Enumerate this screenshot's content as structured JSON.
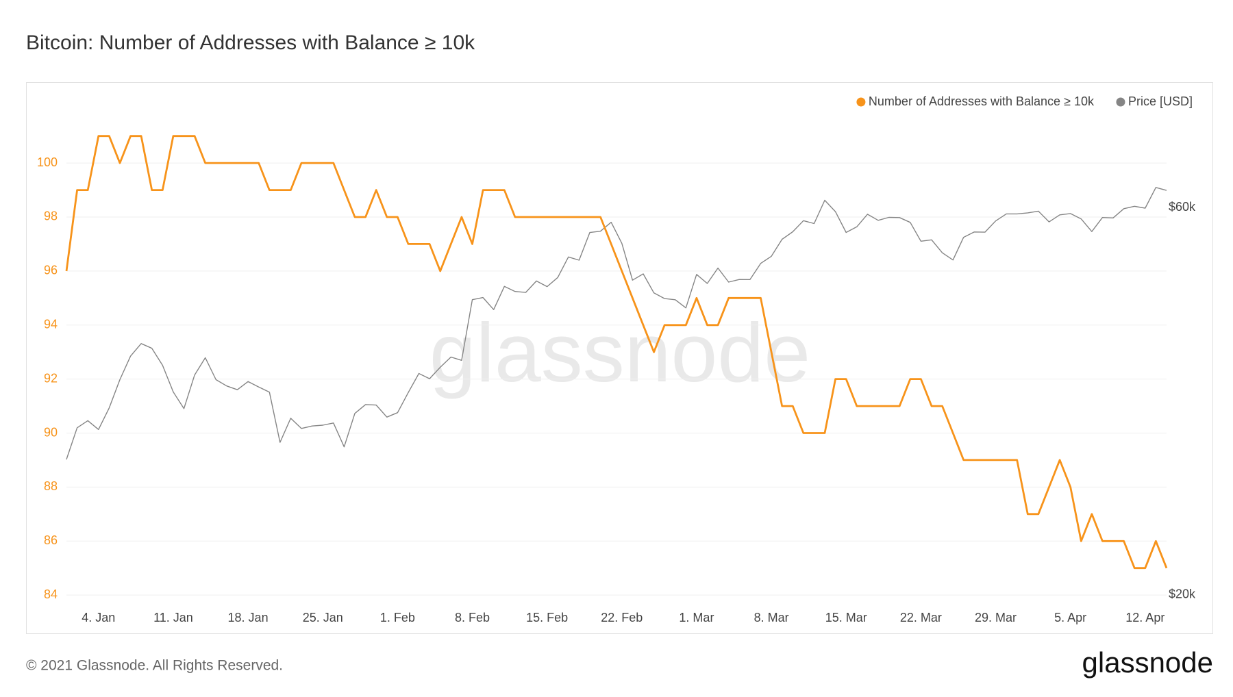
{
  "chart_data": {
    "type": "line",
    "title": "Bitcoin: Number of Addresses with Balance ≥ 10k",
    "copyright": "© 2021 Glassnode. All Rights Reserved.",
    "logo": "glassnode",
    "watermark": "glassnode",
    "categories": [
      null,
      null,
      null,
      "4. Jan",
      null,
      null,
      null,
      null,
      null,
      null,
      "11. Jan",
      null,
      null,
      null,
      null,
      null,
      null,
      "18. Jan",
      null,
      null,
      null,
      null,
      null,
      null,
      "25. Jan",
      null,
      null,
      null,
      null,
      null,
      null,
      "1. Feb",
      null,
      null,
      null,
      null,
      null,
      null,
      "8. Feb",
      null,
      null,
      null,
      null,
      null,
      null,
      "15. Feb",
      null,
      null,
      null,
      null,
      null,
      null,
      "22. Feb",
      null,
      null,
      null,
      null,
      null,
      null,
      "1. Mar",
      null,
      null,
      null,
      null,
      null,
      null,
      "8. Mar",
      null,
      null,
      null,
      null,
      null,
      null,
      "15. Mar",
      null,
      null,
      null,
      null,
      null,
      null,
      "22. Mar",
      null,
      null,
      null,
      null,
      null,
      null,
      "29. Mar",
      null,
      null,
      null,
      null,
      null,
      null,
      "5. Apr",
      null,
      null,
      null,
      null,
      null,
      null,
      "12. Apr",
      null,
      null
    ],
    "series": [
      {
        "name": "Number of Addresses with Balance ≥ 10k",
        "color": "#f7931a",
        "values": [
          96,
          99,
          99,
          101,
          101,
          100,
          101,
          101,
          99,
          99,
          101,
          101,
          101,
          100,
          100,
          100,
          100,
          100,
          100,
          99,
          99,
          99,
          100,
          100,
          100,
          100,
          99,
          98,
          98,
          99,
          98,
          98,
          97,
          97,
          97,
          96,
          97,
          98,
          97,
          99,
          99,
          99,
          98,
          98,
          98,
          98,
          98,
          98,
          98,
          98,
          98,
          97,
          96,
          95,
          94,
          93,
          94,
          94,
          94,
          95,
          94,
          94,
          95,
          95,
          95,
          95,
          93,
          91,
          91,
          90,
          90,
          90,
          92,
          92,
          91,
          91,
          91,
          91,
          91,
          92,
          92,
          91,
          91,
          90,
          89,
          89,
          89,
          89,
          89,
          89,
          87,
          87,
          88,
          89,
          88,
          86,
          87,
          86,
          86,
          86,
          85,
          85,
          86,
          85
        ]
      },
      {
        "name": "Price [USD]",
        "color": "#858585",
        "axis": "y2",
        "values": [
          29374,
          32127,
          32782,
          31971,
          33992,
          36824,
          39371,
          40797,
          40254,
          38356,
          35566,
          33922,
          37316,
          39187,
          36825,
          36178,
          35792,
          36630,
          36070,
          35548,
          30825,
          33005,
          32067,
          32289,
          32366,
          32569,
          30433,
          33467,
          34316,
          34269,
          33114,
          33537,
          35510,
          37473,
          36926,
          38144,
          39266,
          38903,
          46196,
          46481,
          44919,
          47969,
          47288,
          47156,
          48717,
          47945,
          49199,
          52149,
          51679,
          55888,
          56099,
          57539,
          54207,
          48824,
          49705,
          47093,
          46339,
          46188,
          45137,
          49631,
          48378,
          50538,
          48561,
          48927,
          48912,
          51206,
          52246,
          54824,
          56008,
          57805,
          57333,
          61243,
          59302,
          55907,
          56804,
          58870,
          57859,
          58346,
          58313,
          57524,
          54529,
          54738,
          52775,
          51705,
          55137,
          55974,
          55948,
          57750,
          58918,
          58918,
          59095,
          59384,
          57604,
          58760,
          58981,
          58093,
          56048,
          58323,
          58246,
          59794,
          60205,
          59894,
          63504,
          62985
        ]
      }
    ],
    "ylim": [
      83.75,
      101.93
    ],
    "yticks": [
      84,
      86,
      88,
      90,
      92,
      94,
      96,
      98,
      100
    ],
    "y2lim": [
      19615,
      78900
    ],
    "y2ticks": [
      {
        "value": 20000,
        "label": "$20k"
      },
      {
        "value": 60000,
        "label": "$60k"
      }
    ],
    "y2log": true,
    "grid": true,
    "legend": "top-right"
  }
}
